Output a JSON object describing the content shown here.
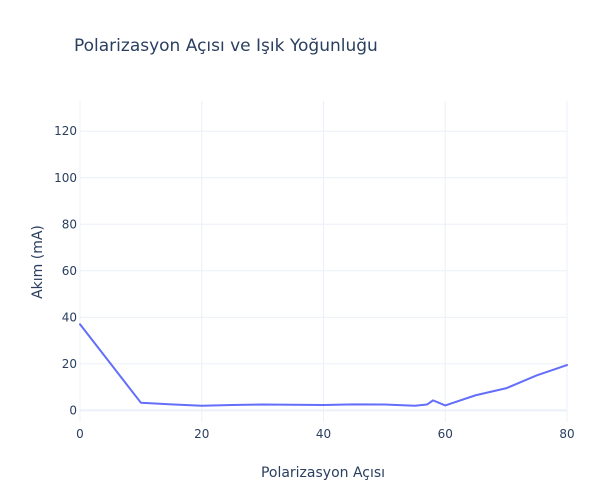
{
  "chart_data": {
    "type": "line",
    "title": "Polarizasyon Açısı ve Işık Yoğunluğu",
    "xlabel": "Polarizasyon Açısı",
    "ylabel": "Akım (mA)",
    "xlim": [
      0,
      80
    ],
    "ylim": [
      -5,
      133
    ],
    "xticks": [
      0,
      20,
      40,
      60,
      80
    ],
    "yticks": [
      0,
      20,
      40,
      60,
      80,
      100,
      120
    ],
    "grid": true,
    "legend": "none",
    "series": [
      {
        "name": "Akım",
        "color": "#636efa",
        "x": [
          0,
          10,
          15,
          20,
          25,
          30,
          35,
          40,
          45,
          50,
          55,
          57,
          58,
          60,
          65,
          70,
          75,
          80
        ],
        "y": [
          37,
          3.3,
          2.6,
          2.0,
          2.3,
          2.5,
          2.4,
          2.3,
          2.6,
          2.5,
          2.0,
          2.5,
          4.3,
          2.1,
          6.5,
          9.5,
          15.0,
          19.5
        ]
      }
    ]
  }
}
